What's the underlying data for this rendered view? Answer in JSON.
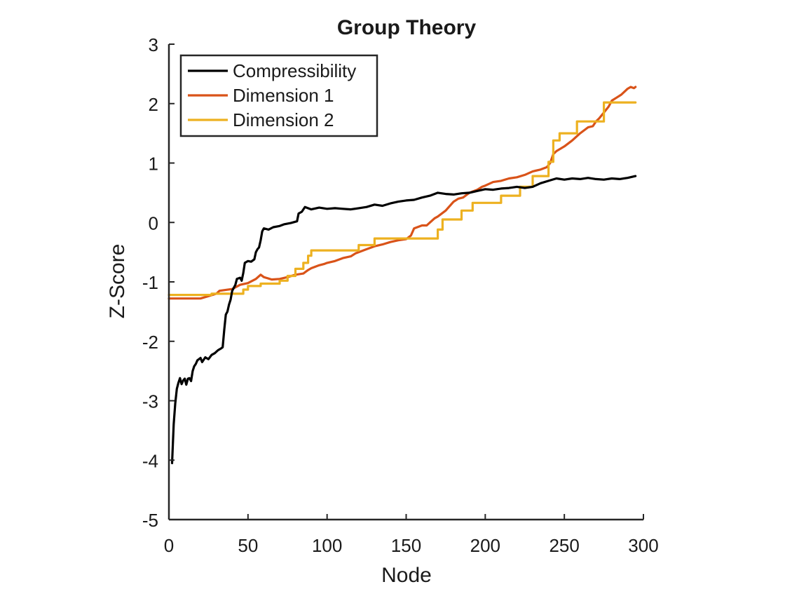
{
  "chart_data": {
    "type": "line",
    "title": "Group Theory",
    "xlabel": "Node",
    "ylabel": "Z-Score",
    "xlim": [
      0,
      300
    ],
    "ylim": [
      -5,
      3
    ],
    "xticks": [
      "0",
      "50",
      "100",
      "150",
      "200",
      "250",
      "300"
    ],
    "yticks": [
      "3",
      "2",
      "1",
      "0",
      "-1",
      "-2",
      "-3",
      "-4",
      "-5"
    ],
    "grid": false,
    "legend_position": "top-left",
    "series": [
      {
        "name": "Compressibility",
        "color": "#000000",
        "points": [
          [
            2,
            -4.05
          ],
          [
            3,
            -3.4
          ],
          [
            4,
            -3.05
          ],
          [
            5,
            -2.8
          ],
          [
            6,
            -2.7
          ],
          [
            7,
            -2.62
          ],
          [
            8,
            -2.72
          ],
          [
            9,
            -2.66
          ],
          [
            10,
            -2.63
          ],
          [
            11,
            -2.73
          ],
          [
            12,
            -2.63
          ],
          [
            13,
            -2.62
          ],
          [
            14,
            -2.67
          ],
          [
            15,
            -2.5
          ],
          [
            16,
            -2.42
          ],
          [
            17,
            -2.38
          ],
          [
            18,
            -2.32
          ],
          [
            20,
            -2.28
          ],
          [
            21,
            -2.35
          ],
          [
            23,
            -2.27
          ],
          [
            25,
            -2.3
          ],
          [
            27,
            -2.23
          ],
          [
            29,
            -2.2
          ],
          [
            31,
            -2.15
          ],
          [
            33,
            -2.12
          ],
          [
            34,
            -2.1
          ],
          [
            35,
            -1.8
          ],
          [
            36,
            -1.55
          ],
          [
            37,
            -1.5
          ],
          [
            38,
            -1.38
          ],
          [
            39,
            -1.3
          ],
          [
            40,
            -1.15
          ],
          [
            42,
            -1.05
          ],
          [
            43,
            -0.95
          ],
          [
            45,
            -0.93
          ],
          [
            46,
            -0.98
          ],
          [
            47,
            -0.85
          ],
          [
            48,
            -0.68
          ],
          [
            50,
            -0.65
          ],
          [
            52,
            -0.66
          ],
          [
            54,
            -0.62
          ],
          [
            55,
            -0.5
          ],
          [
            56,
            -0.45
          ],
          [
            57,
            -0.42
          ],
          [
            58,
            -0.3
          ],
          [
            59,
            -0.15
          ],
          [
            60,
            -0.1
          ],
          [
            63,
            -0.12
          ],
          [
            66,
            -0.08
          ],
          [
            70,
            -0.06
          ],
          [
            73,
            -0.03
          ],
          [
            77,
            -0.01
          ],
          [
            81,
            0.02
          ],
          [
            82,
            0.15
          ],
          [
            84,
            0.18
          ],
          [
            86,
            0.26
          ],
          [
            90,
            0.22
          ],
          [
            95,
            0.25
          ],
          [
            100,
            0.23
          ],
          [
            105,
            0.24
          ],
          [
            110,
            0.23
          ],
          [
            115,
            0.22
          ],
          [
            120,
            0.24
          ],
          [
            125,
            0.26
          ],
          [
            130,
            0.3
          ],
          [
            135,
            0.28
          ],
          [
            140,
            0.32
          ],
          [
            145,
            0.35
          ],
          [
            150,
            0.37
          ],
          [
            155,
            0.38
          ],
          [
            160,
            0.42
          ],
          [
            165,
            0.45
          ],
          [
            170,
            0.5
          ],
          [
            175,
            0.48
          ],
          [
            180,
            0.47
          ],
          [
            185,
            0.49
          ],
          [
            190,
            0.5
          ],
          [
            195,
            0.53
          ],
          [
            200,
            0.56
          ],
          [
            205,
            0.55
          ],
          [
            210,
            0.57
          ],
          [
            215,
            0.58
          ],
          [
            220,
            0.6
          ],
          [
            225,
            0.58
          ],
          [
            230,
            0.6
          ],
          [
            235,
            0.66
          ],
          [
            240,
            0.7
          ],
          [
            245,
            0.74
          ],
          [
            250,
            0.72
          ],
          [
            255,
            0.74
          ],
          [
            260,
            0.73
          ],
          [
            265,
            0.75
          ],
          [
            270,
            0.73
          ],
          [
            275,
            0.72
          ],
          [
            280,
            0.74
          ],
          [
            285,
            0.73
          ],
          [
            290,
            0.75
          ],
          [
            295,
            0.78
          ]
        ]
      },
      {
        "name": "Dimension 1",
        "color": "#d95319",
        "points": [
          [
            0,
            -1.28
          ],
          [
            20,
            -1.28
          ],
          [
            25,
            -1.24
          ],
          [
            30,
            -1.2
          ],
          [
            32,
            -1.15
          ],
          [
            40,
            -1.12
          ],
          [
            45,
            -1.05
          ],
          [
            50,
            -1.02
          ],
          [
            55,
            -0.95
          ],
          [
            58,
            -0.88
          ],
          [
            60,
            -0.92
          ],
          [
            65,
            -0.96
          ],
          [
            70,
            -0.95
          ],
          [
            75,
            -0.92
          ],
          [
            80,
            -0.88
          ],
          [
            85,
            -0.86
          ],
          [
            88,
            -0.8
          ],
          [
            90,
            -0.77
          ],
          [
            95,
            -0.72
          ],
          [
            98,
            -0.7
          ],
          [
            100,
            -0.68
          ],
          [
            105,
            -0.65
          ],
          [
            110,
            -0.6
          ],
          [
            115,
            -0.57
          ],
          [
            118,
            -0.52
          ],
          [
            120,
            -0.5
          ],
          [
            125,
            -0.45
          ],
          [
            130,
            -0.4
          ],
          [
            135,
            -0.37
          ],
          [
            140,
            -0.33
          ],
          [
            145,
            -0.3
          ],
          [
            150,
            -0.28
          ],
          [
            153,
            -0.22
          ],
          [
            155,
            -0.1
          ],
          [
            160,
            -0.05
          ],
          [
            163,
            -0.05
          ],
          [
            165,
            0.0
          ],
          [
            168,
            0.07
          ],
          [
            170,
            0.1
          ],
          [
            175,
            0.2
          ],
          [
            180,
            0.35
          ],
          [
            183,
            0.4
          ],
          [
            186,
            0.42
          ],
          [
            190,
            0.5
          ],
          [
            195,
            0.55
          ],
          [
            198,
            0.6
          ],
          [
            200,
            0.62
          ],
          [
            205,
            0.68
          ],
          [
            210,
            0.7
          ],
          [
            215,
            0.74
          ],
          [
            220,
            0.76
          ],
          [
            225,
            0.8
          ],
          [
            230,
            0.86
          ],
          [
            235,
            0.89
          ],
          [
            239,
            0.93
          ],
          [
            241,
            1.0
          ],
          [
            243,
            1.15
          ],
          [
            245,
            1.2
          ],
          [
            250,
            1.28
          ],
          [
            255,
            1.38
          ],
          [
            260,
            1.5
          ],
          [
            265,
            1.6
          ],
          [
            268,
            1.62
          ],
          [
            270,
            1.7
          ],
          [
            272,
            1.75
          ],
          [
            275,
            1.85
          ],
          [
            278,
            1.95
          ],
          [
            280,
            2.05
          ],
          [
            283,
            2.1
          ],
          [
            286,
            2.15
          ],
          [
            288,
            2.2
          ],
          [
            290,
            2.25
          ],
          [
            292,
            2.28
          ],
          [
            294,
            2.26
          ],
          [
            295,
            2.28
          ]
        ]
      },
      {
        "name": "Dimension 2",
        "color": "#edb120",
        "points": [
          [
            0,
            -1.22
          ],
          [
            27,
            -1.22
          ],
          [
            27,
            -1.2
          ],
          [
            47,
            -1.2
          ],
          [
            47,
            -1.13
          ],
          [
            50,
            -1.13
          ],
          [
            50,
            -1.07
          ],
          [
            58,
            -1.07
          ],
          [
            58,
            -1.03
          ],
          [
            70,
            -1.03
          ],
          [
            70,
            -0.98
          ],
          [
            75,
            -0.98
          ],
          [
            75,
            -0.9
          ],
          [
            80,
            -0.9
          ],
          [
            80,
            -0.78
          ],
          [
            85,
            -0.78
          ],
          [
            85,
            -0.68
          ],
          [
            88,
            -0.68
          ],
          [
            88,
            -0.56
          ],
          [
            90,
            -0.56
          ],
          [
            90,
            -0.47
          ],
          [
            120,
            -0.47
          ],
          [
            120,
            -0.38
          ],
          [
            130,
            -0.38
          ],
          [
            130,
            -0.27
          ],
          [
            170,
            -0.27
          ],
          [
            170,
            -0.12
          ],
          [
            173,
            -0.12
          ],
          [
            173,
            0.05
          ],
          [
            185,
            0.05
          ],
          [
            185,
            0.2
          ],
          [
            192,
            0.2
          ],
          [
            192,
            0.33
          ],
          [
            210,
            0.33
          ],
          [
            210,
            0.45
          ],
          [
            222,
            0.45
          ],
          [
            222,
            0.6
          ],
          [
            230,
            0.6
          ],
          [
            230,
            0.78
          ],
          [
            240,
            0.78
          ],
          [
            240,
            1.02
          ],
          [
            243,
            1.02
          ],
          [
            243,
            1.38
          ],
          [
            247,
            1.38
          ],
          [
            247,
            1.5
          ],
          [
            258,
            1.5
          ],
          [
            258,
            1.7
          ],
          [
            275,
            1.7
          ],
          [
            275,
            2.02
          ],
          [
            295,
            2.02
          ]
        ]
      }
    ]
  }
}
